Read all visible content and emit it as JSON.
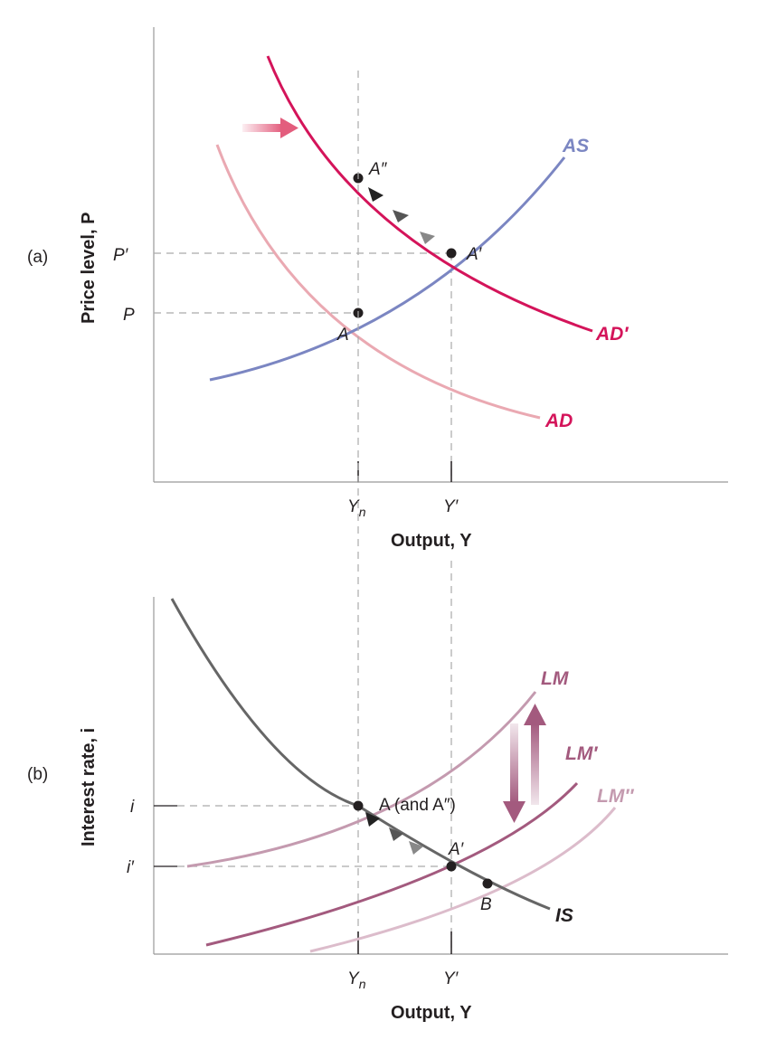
{
  "panel_a": {
    "tag": "(a)",
    "y_axis_label": "Price level, P",
    "x_axis_label": "Output, Y",
    "y_ticks": {
      "p_prime": "P′",
      "p": "P"
    },
    "x_ticks": {
      "yn_base": "Y",
      "yn_sub": "n",
      "y_prime": "Y′"
    },
    "curves": {
      "as": "AS",
      "ad": "AD",
      "ad_prime": "AD′"
    },
    "points": {
      "a": "A",
      "a_prime": "A′",
      "a_double": "A″"
    },
    "colors": {
      "as": "#7b86c2",
      "ad": "#eaa9b2",
      "ad_prime": "#d4145a",
      "shift_arrow": "#e35d7d"
    }
  },
  "panel_b": {
    "tag": "(b)",
    "y_axis_label": "Interest rate, i",
    "x_axis_label": "Output, Y",
    "y_ticks": {
      "i": "i",
      "i_prime": "i′"
    },
    "x_ticks": {
      "yn_base": "Y",
      "yn_sub": "n",
      "y_prime": "Y′"
    },
    "curves": {
      "lm": "LM",
      "lm_prime": "LM′",
      "lm_double": "LM″",
      "is": "IS"
    },
    "points": {
      "a_and": "A (and A″)",
      "a_prime": "A′",
      "b": "B"
    },
    "colors": {
      "lm": "#c49aaf",
      "lm_prime": "#a35a7e",
      "lm_double": "#dcbccb",
      "is": "#666666"
    }
  }
}
